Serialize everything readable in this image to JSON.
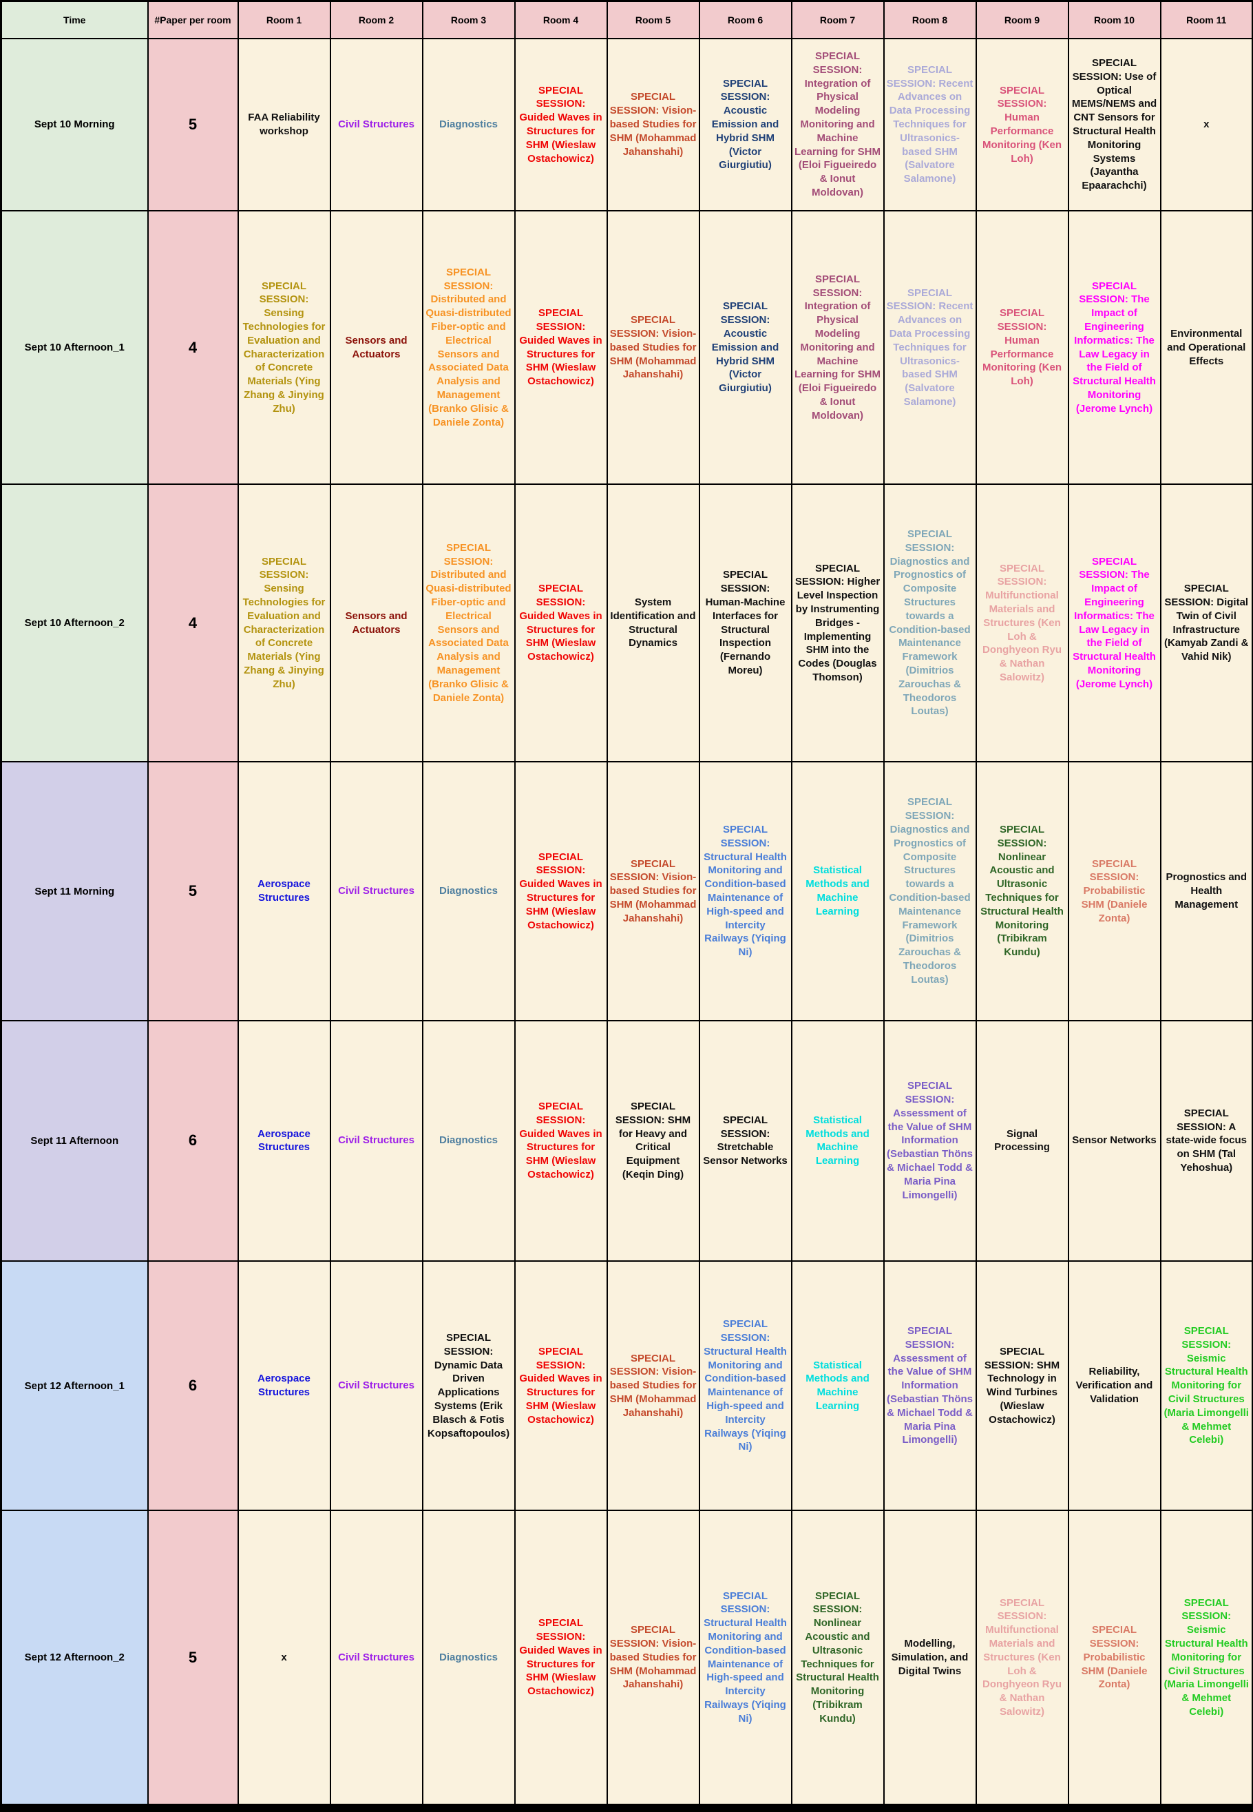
{
  "palette": {
    "header_pink": "#f2cbcd",
    "time_header_green": "#dfecdb",
    "cell_cream": "#faf2de",
    "bg_sept10": "#dfecdb",
    "bg_sept11": "#d2cfe8",
    "bg_sept12": "#c8daf4",
    "black": "#111111",
    "red": "#f00505",
    "brick": "#c44a2c",
    "navy": "#1f4077",
    "plum": "#a34d78",
    "periwinkle": "#abaad8",
    "rose": "#d9537a",
    "magenta": "#ff00ff",
    "olivegold": "#b3930f",
    "darkred": "#8b1109",
    "orange": "#f79324",
    "steelblue": "#4f7f9f",
    "cadet": "#7fa7b8",
    "salmon": "#e8a3a3",
    "coral": "#d97a66",
    "blue": "#1515dd",
    "purple": "#9d1fe8",
    "cornflower": "#4a7ed8",
    "cyan": "#00dede",
    "darkgreen": "#2f6627",
    "green": "#22cc22",
    "mediumpurple": "#7a5dc7"
  },
  "header": {
    "time": "Time",
    "paper": "#Paper per room",
    "rooms": [
      "Room 1",
      "Room 2",
      "Room 3",
      "Room 4",
      "Room 5",
      "Room 6",
      "Room 7",
      "Room 8",
      "Room 9",
      "Room 10",
      "Room 11"
    ]
  },
  "rows": [
    {
      "time": "Sept 10 Morning",
      "bg": "bg_sept10",
      "papers": "5",
      "cells": [
        {
          "t": "FAA Reliability workshop",
          "c": "black"
        },
        {
          "t": "Civil Structures",
          "c": "purple"
        },
        {
          "t": "Diagnostics",
          "c": "steelblue"
        },
        {
          "t": "SPECIAL SESSION: Guided Waves in Structures for SHM (Wieslaw Ostachowicz)",
          "c": "red"
        },
        {
          "t": "SPECIAL SESSION: Vision-based Studies for SHM (Mohammad Jahanshahi)",
          "c": "brick"
        },
        {
          "t": "SPECIAL SESSION: Acoustic Emission and Hybrid SHM (Victor Giurgiutiu)",
          "c": "navy"
        },
        {
          "t": "SPECIAL SESSION: Integration of Physical Modeling Monitoring and Machine Learning for SHM (Eloi Figueiredo & Ionut Moldovan)",
          "c": "plum"
        },
        {
          "t": "SPECIAL SESSION: Recent Advances on Data Processing Techniques for Ultrasonics-based SHM (Salvatore Salamone)",
          "c": "periwinkle"
        },
        {
          "t": "SPECIAL SESSION: Human Performance Monitoring (Ken Loh)",
          "c": "rose"
        },
        {
          "t": "SPECIAL SESSION: Use of Optical MEMS/NEMS and CNT Sensors for Structural Health Monitoring Systems (Jayantha Epaarachchi)",
          "c": "black"
        },
        {
          "t": "x",
          "c": "black"
        }
      ]
    },
    {
      "time": "Sept 10 Afternoon_1",
      "bg": "bg_sept10",
      "papers": "4",
      "cells": [
        {
          "t": "SPECIAL SESSION: Sensing Technologies for Evaluation and Characterization of Concrete Materials (Ying Zhang & Jinying Zhu)",
          "c": "olivegold"
        },
        {
          "t": "Sensors and Actuators",
          "c": "darkred"
        },
        {
          "t": "SPECIAL SESSION: Distributed and Quasi-distributed Fiber-optic and Electrical Sensors and Associated Data Analysis and Management (Branko Glisic & Daniele Zonta)",
          "c": "orange"
        },
        {
          "t": "SPECIAL SESSION: Guided Waves in Structures for SHM (Wieslaw Ostachowicz)",
          "c": "red"
        },
        {
          "t": "SPECIAL SESSION: Vision-based Studies for SHM (Mohammad Jahanshahi)",
          "c": "brick"
        },
        {
          "t": "SPECIAL SESSION: Acoustic Emission and Hybrid SHM (Victor Giurgiutiu)",
          "c": "navy"
        },
        {
          "t": "SPECIAL SESSION: Integration of Physical Modeling Monitoring and Machine Learning for SHM (Eloi Figueiredo & Ionut Moldovan)",
          "c": "plum"
        },
        {
          "t": "SPECIAL SESSION: Recent Advances on Data Processing Techniques for Ultrasonics-based SHM (Salvatore Salamone)",
          "c": "periwinkle"
        },
        {
          "t": "SPECIAL SESSION: Human Performance Monitoring (Ken Loh)",
          "c": "rose"
        },
        {
          "t": "SPECIAL SESSION: The Impact of Engineering Informatics: The Law Legacy in the Field of Structural Health Monitoring (Jerome Lynch)",
          "c": "magenta"
        },
        {
          "t": "Environmental and Operational Effects",
          "c": "black"
        }
      ]
    },
    {
      "time": "Sept 10 Afternoon_2",
      "bg": "bg_sept10",
      "papers": "4",
      "cells": [
        {
          "t": "SPECIAL SESSION: Sensing Technologies for Evaluation and Characterization of Concrete Materials (Ying Zhang & Jinying Zhu)",
          "c": "olivegold"
        },
        {
          "t": "Sensors and Actuators",
          "c": "darkred"
        },
        {
          "t": "SPECIAL SESSION: Distributed and Quasi-distributed Fiber-optic and Electrical Sensors and Associated Data Analysis and Management (Branko Glisic & Daniele Zonta)",
          "c": "orange"
        },
        {
          "t": "SPECIAL SESSION: Guided Waves in Structures for SHM (Wieslaw Ostachowicz)",
          "c": "red"
        },
        {
          "t": "System Identification and Structural Dynamics",
          "c": "black"
        },
        {
          "t": "SPECIAL SESSION: Human-Machine Interfaces for Structural Inspection (Fernando Moreu)",
          "c": "black"
        },
        {
          "t": "SPECIAL SESSION: Higher Level Inspection by Instrumenting Bridges - Implementing SHM into the Codes (Douglas Thomson)",
          "c": "black"
        },
        {
          "t": "SPECIAL SESSION: Diagnostics and Prognostics of Composite Structures towards a Condition-based Maintenance Framework (Dimitrios Zarouchas & Theodoros Loutas)",
          "c": "cadet"
        },
        {
          "t": "SPECIAL SESSION: Multifunctional Materials and Structures (Ken Loh & Donghyeon Ryu & Nathan Salowitz)",
          "c": "salmon"
        },
        {
          "t": "SPECIAL SESSION: The Impact of Engineering Informatics: The Law Legacy in the Field of Structural Health Monitoring (Jerome Lynch)",
          "c": "magenta"
        },
        {
          "t": "SPECIAL SESSION: Digital Twin of Civil Infrastructure (Kamyab Zandi & Vahid Nik)",
          "c": "black"
        }
      ]
    },
    {
      "time": "Sept 11 Morning",
      "bg": "bg_sept11",
      "papers": "5",
      "cells": [
        {
          "t": "Aerospace Structures",
          "c": "blue"
        },
        {
          "t": "Civil Structures",
          "c": "purple"
        },
        {
          "t": "Diagnostics",
          "c": "steelblue"
        },
        {
          "t": "SPECIAL SESSION: Guided Waves in Structures for SHM (Wieslaw Ostachowicz)",
          "c": "red"
        },
        {
          "t": "SPECIAL SESSION: Vision-based Studies for SHM (Mohammad Jahanshahi)",
          "c": "brick"
        },
        {
          "t": "SPECIAL SESSION: Structural Health Monitoring and Condition-based Maintenance of High-speed and Intercity Railways (Yiqing Ni)",
          "c": "cornflower"
        },
        {
          "t": "Statistical Methods and Machine Learning",
          "c": "cyan"
        },
        {
          "t": "SPECIAL SESSION: Diagnostics and Prognostics of Composite Structures towards a Condition-based Maintenance Framework (Dimitrios Zarouchas & Theodoros Loutas)",
          "c": "cadet"
        },
        {
          "t": "SPECIAL SESSION: Nonlinear Acoustic and Ultrasonic Techniques for Structural Health Monitoring (Tribikram Kundu)",
          "c": "darkgreen"
        },
        {
          "t": "SPECIAL SESSION: Probabilistic SHM (Daniele Zonta)",
          "c": "coral"
        },
        {
          "t": "Prognostics and Health Management",
          "c": "black"
        }
      ]
    },
    {
      "time": "Sept 11 Afternoon",
      "bg": "bg_sept11",
      "papers": "6",
      "cells": [
        {
          "t": "Aerospace Structures",
          "c": "blue"
        },
        {
          "t": "Civil Structures",
          "c": "purple"
        },
        {
          "t": "Diagnostics",
          "c": "steelblue"
        },
        {
          "t": "SPECIAL SESSION: Guided Waves in Structures for SHM (Wieslaw Ostachowicz)",
          "c": "red"
        },
        {
          "t": "SPECIAL SESSION: SHM for Heavy and Critical Equipment (Keqin Ding)",
          "c": "black"
        },
        {
          "t": "SPECIAL SESSION: Stretchable Sensor Networks",
          "c": "black"
        },
        {
          "t": "Statistical Methods and Machine Learning",
          "c": "cyan"
        },
        {
          "t": "SPECIAL SESSION: Assessment of the Value of SHM Information (Sebastian Thöns & Michael Todd & Maria Pina Limongelli)",
          "c": "mediumpurple"
        },
        {
          "t": "Signal Processing",
          "c": "black"
        },
        {
          "t": "Sensor Networks",
          "c": "black"
        },
        {
          "t": "SPECIAL SESSION: A state-wide focus on SHM (Tal Yehoshua)",
          "c": "black"
        }
      ]
    },
    {
      "time": "Sept 12 Afternoon_1",
      "bg": "bg_sept12",
      "papers": "6",
      "cells": [
        {
          "t": "Aerospace Structures",
          "c": "blue"
        },
        {
          "t": "Civil Structures",
          "c": "purple"
        },
        {
          "t": "SPECIAL SESSION: Dynamic Data Driven Applications Systems (Erik Blasch & Fotis Kopsaftopoulos)",
          "c": "black"
        },
        {
          "t": "SPECIAL SESSION: Guided Waves in Structures for SHM (Wieslaw Ostachowicz)",
          "c": "red"
        },
        {
          "t": "SPECIAL SESSION: Vision-based Studies for SHM (Mohammad Jahanshahi)",
          "c": "brick"
        },
        {
          "t": "SPECIAL SESSION: Structural Health Monitoring and Condition-based Maintenance of High-speed and Intercity Railways (Yiqing Ni)",
          "c": "cornflower"
        },
        {
          "t": "Statistical Methods and Machine Learning",
          "c": "cyan"
        },
        {
          "t": "SPECIAL SESSION: Assessment of the Value of SHM Information (Sebastian Thöns & Michael Todd & Maria Pina Limongelli)",
          "c": "mediumpurple"
        },
        {
          "t": "SPECIAL SESSION: SHM Technology in Wind Turbines (Wieslaw Ostachowicz)",
          "c": "black"
        },
        {
          "t": "Reliability, Verification and Validation",
          "c": "black"
        },
        {
          "t": "SPECIAL SESSION: Seismic Structural Health Monitoring for Civil Structures (Maria Limongelli & Mehmet Celebi)",
          "c": "green"
        }
      ]
    },
    {
      "time": "Sept 12 Afternoon_2",
      "bg": "bg_sept12",
      "papers": "5",
      "cells": [
        {
          "t": "x",
          "c": "black"
        },
        {
          "t": "Civil Structures",
          "c": "purple"
        },
        {
          "t": "Diagnostics",
          "c": "steelblue"
        },
        {
          "t": "SPECIAL SESSION: Guided Waves in Structures for SHM (Wieslaw Ostachowicz)",
          "c": "red"
        },
        {
          "t": "SPECIAL SESSION: Vision-based Studies for SHM (Mohammad Jahanshahi)",
          "c": "brick"
        },
        {
          "t": "SPECIAL SESSION: Structural Health Monitoring and Condition-based Maintenance of High-speed and Intercity Railways (Yiqing Ni)",
          "c": "cornflower"
        },
        {
          "t": "SPECIAL SESSION: Nonlinear Acoustic and Ultrasonic Techniques for Structural Health Monitoring (Tribikram Kundu)",
          "c": "darkgreen"
        },
        {
          "t": "Modelling, Simulation, and Digital Twins",
          "c": "black"
        },
        {
          "t": "SPECIAL SESSION: Multifunctional Materials and Structures (Ken Loh & Donghyeon Ryu & Nathan Salowitz)",
          "c": "salmon"
        },
        {
          "t": "SPECIAL SESSION: Probabilistic SHM (Daniele Zonta)",
          "c": "coral"
        },
        {
          "t": "SPECIAL SESSION: Seismic Structural Health Monitoring for Civil Structures (Maria Limongelli & Mehmet Celebi)",
          "c": "green"
        }
      ]
    }
  ]
}
